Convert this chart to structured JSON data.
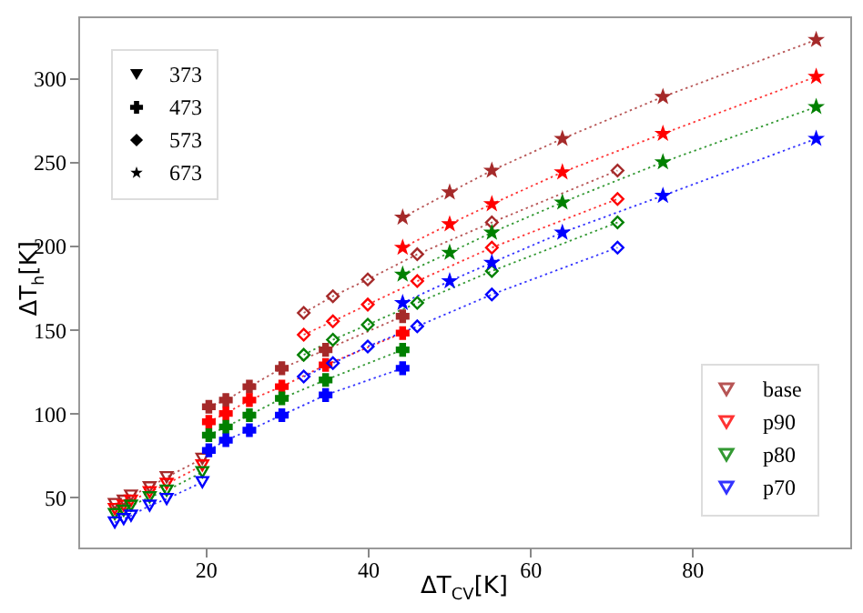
{
  "chart_data": {
    "type": "line",
    "xlabel": "ΔT$_{CV}$[K]",
    "ylabel": "ΔT$_{h}$[K]",
    "xlim": [
      4.3,
      99.5
    ],
    "ylim": [
      20,
      337
    ],
    "xticks": [
      20,
      40,
      60,
      80
    ],
    "yticks": [
      50,
      100,
      150,
      200,
      250,
      300
    ],
    "grid": false,
    "legend": [
      "top left",
      "bottom right"
    ],
    "line_style": "dotted",
    "series": [
      {
        "name": "base",
        "color": "#a52a2a",
        "marker": "triangle",
        "x": [
          8.8,
          9.9,
          10.8,
          13.1,
          15.2,
          19.6
        ],
        "values": [
          46,
          48,
          51,
          56,
          62,
          73
        ]
      },
      {
        "color": "#a52a2a",
        "marker": "cross",
        "x": [
          20.4,
          22.5,
          25.4,
          29.4,
          34.8,
          44.3
        ],
        "values": [
          104,
          108,
          116,
          127,
          138,
          158
        ]
      },
      {
        "color": "#a52a2a",
        "marker": "diamond",
        "x": [
          32.1,
          35.7,
          40,
          46.1,
          55.3,
          70.8
        ],
        "values": [
          160,
          170,
          180,
          195,
          214,
          245
        ]
      },
      {
        "color": "#a52a2a",
        "marker": "star",
        "x": [
          44.3,
          50.1,
          55.3,
          64,
          76.4,
          95.3
        ],
        "values": [
          217,
          232,
          245,
          264,
          289,
          323
        ]
      },
      {
        "name": "p90",
        "color": "#ff0000",
        "marker": "triangle",
        "x": [
          8.8,
          9.9,
          10.8,
          13.1,
          15.2,
          19.6
        ],
        "values": [
          43,
          45,
          48,
          53,
          58,
          69
        ]
      },
      {
        "color": "#ff0000",
        "marker": "cross",
        "x": [
          20.4,
          22.5,
          25.4,
          29.4,
          34.8,
          44.3
        ],
        "values": [
          95,
          100,
          108,
          116,
          129,
          148
        ]
      },
      {
        "color": "#ff0000",
        "marker": "diamond",
        "x": [
          32.1,
          35.7,
          40,
          46.1,
          55.3,
          70.8
        ],
        "values": [
          147,
          155,
          165,
          179,
          199,
          228
        ]
      },
      {
        "color": "#ff0000",
        "marker": "star",
        "x": [
          44.3,
          50.1,
          55.3,
          64,
          76.4,
          95.3
        ],
        "values": [
          199,
          213,
          225,
          244,
          267,
          301
        ]
      },
      {
        "name": "p80",
        "color": "#008000",
        "marker": "triangle",
        "x": [
          8.8,
          9.9,
          10.8,
          13.1,
          15.2,
          19.6
        ],
        "values": [
          40,
          42,
          45,
          50,
          54,
          65
        ]
      },
      {
        "color": "#008000",
        "marker": "cross",
        "x": [
          20.4,
          22.5,
          25.4,
          29.4,
          34.8,
          44.3
        ],
        "values": [
          87,
          92,
          99,
          109,
          120,
          138
        ]
      },
      {
        "color": "#008000",
        "marker": "diamond",
        "x": [
          32.1,
          35.7,
          40,
          46.1,
          55.3,
          70.8
        ],
        "values": [
          135,
          144,
          153,
          166,
          185,
          214
        ]
      },
      {
        "color": "#008000",
        "marker": "star",
        "x": [
          44.3,
          50.1,
          55.3,
          64,
          76.4,
          95.3
        ],
        "values": [
          183,
          196,
          208,
          226,
          250,
          283
        ]
      },
      {
        "name": "p70",
        "color": "#0000ff",
        "marker": "triangle",
        "x": [
          8.8,
          9.9,
          10.8,
          13.1,
          15.2,
          19.6
        ],
        "values": [
          35,
          37,
          39,
          45,
          49,
          59
        ]
      },
      {
        "color": "#0000ff",
        "marker": "cross",
        "x": [
          20.4,
          22.5,
          25.4,
          29.4,
          34.8,
          44.3
        ],
        "values": [
          78,
          84,
          90,
          99,
          111,
          127
        ]
      },
      {
        "color": "#0000ff",
        "marker": "diamond",
        "x": [
          32.1,
          35.7,
          40,
          46.1,
          55.3,
          70.8
        ],
        "values": [
          122,
          130,
          140,
          152,
          171,
          199
        ]
      },
      {
        "color": "#0000ff",
        "marker": "star",
        "x": [
          44.3,
          50.1,
          55.3,
          64,
          76.4,
          95.3
        ],
        "values": [
          166,
          179,
          190,
          208,
          230,
          264
        ]
      },
      {
        "name": "373",
        "color": "#000000",
        "marker": "triangle"
      },
      {
        "name": "473",
        "color": "#000000",
        "marker": "cross"
      },
      {
        "name": "573",
        "color": "#000000",
        "marker": "diamond"
      },
      {
        "name": "673",
        "color": "#000000",
        "marker": "star"
      }
    ]
  }
}
